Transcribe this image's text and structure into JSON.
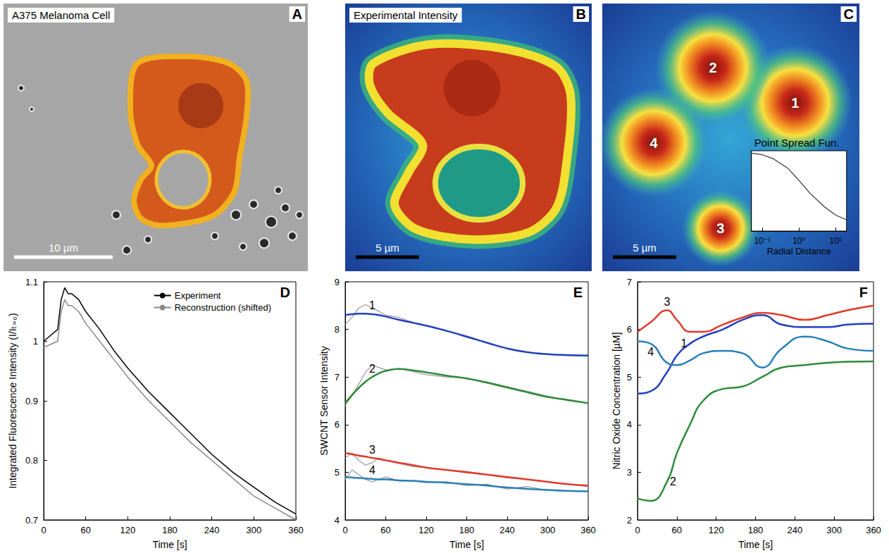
{
  "chart_data": [
    {
      "type": "image",
      "panel": "A",
      "title": "A375 Melanoma Cell",
      "scale_bar": "10 µm"
    },
    {
      "type": "image",
      "panel": "B",
      "title": "Experimental Intensity",
      "scale_bar": "5 µm"
    },
    {
      "type": "image",
      "panel": "C",
      "scale_bar": "5 µm",
      "markers": [
        "1",
        "2",
        "3",
        "4"
      ],
      "inset": {
        "type": "line",
        "title": "Point Spread Fun.",
        "x_label": "Radial Distance",
        "log": "x",
        "x": [
          0.05,
          0.1,
          0.2,
          0.5,
          1,
          2,
          5,
          10,
          20
        ],
        "values": [
          0.97,
          0.95,
          0.9,
          0.78,
          0.63,
          0.47,
          0.3,
          0.2,
          0.14
        ],
        "color": "#333333",
        "xlim": [
          0.05,
          20
        ],
        "xticks": [
          {
            "value": 0.1,
            "label": "10⁻¹"
          },
          {
            "value": 1,
            "label": "10⁰"
          },
          {
            "value": 10,
            "label": "10¹"
          }
        ],
        "ylim": [
          0,
          1
        ],
        "tick_labels": "x"
      }
    },
    {
      "type": "line",
      "panel": "D",
      "x_label": "Time [s]",
      "y_label": "Integrated Fluorescence Intensity (I/Iₜ₌₀)",
      "x": [
        0,
        10,
        20,
        25,
        30,
        35,
        40,
        50,
        60,
        80,
        100,
        120,
        150,
        180,
        210,
        240,
        270,
        300,
        330,
        360
      ],
      "series": [
        {
          "name": "Experiment",
          "color": "#000000",
          "values": [
            1.0,
            1.01,
            1.02,
            1.07,
            1.09,
            1.08,
            1.08,
            1.07,
            1.05,
            1.02,
            0.985,
            0.955,
            0.915,
            0.88,
            0.845,
            0.81,
            0.78,
            0.755,
            0.73,
            0.71
          ]
        },
        {
          "name": "Reconstruction (shifted)",
          "color": "#888888",
          "values": [
            0.99,
            0.995,
            1.0,
            1.05,
            1.07,
            1.06,
            1.06,
            1.05,
            1.03,
            1.0,
            0.97,
            0.94,
            0.9,
            0.865,
            0.83,
            0.8,
            0.77,
            0.74,
            0.72,
            0.7
          ]
        }
      ],
      "xlim": [
        0,
        360
      ],
      "xticks": [
        0,
        60,
        120,
        180,
        240,
        300,
        360
      ],
      "ylim": [
        0.7,
        1.1
      ],
      "yticks": [
        0.7,
        0.8,
        0.9,
        1,
        1.1
      ],
      "legend": "upper right"
    },
    {
      "type": "line",
      "panel": "E",
      "x_label": "Time [s]",
      "y_label": "SWCNT Sensor Intensity",
      "x": [
        0,
        10,
        20,
        30,
        40,
        50,
        60,
        80,
        100,
        120,
        150,
        180,
        210,
        240,
        270,
        300,
        330,
        360
      ],
      "series": [
        {
          "color": "#999999",
          "values": [
            8.1,
            8.25,
            8.45,
            8.52,
            8.45,
            8.38,
            8.3,
            8.25,
            8.15,
            8.08,
            7.98,
            7.83,
            7.72,
            7.6,
            7.52,
            7.48,
            7.45,
            7.44
          ]
        },
        {
          "color": "#999999",
          "values": [
            6.4,
            6.6,
            6.85,
            7.1,
            7.25,
            7.2,
            7.15,
            7.18,
            7.12,
            7.05,
            7.0,
            6.98,
            6.9,
            6.8,
            6.7,
            6.6,
            6.5,
            6.45
          ]
        },
        {
          "color": "#999999",
          "values": [
            5.3,
            5.4,
            5.25,
            5.15,
            5.2,
            5.3,
            5.25,
            5.18,
            5.12,
            5.1,
            5.05,
            5.02,
            4.95,
            4.88,
            4.85,
            4.8,
            4.75,
            4.7
          ]
        },
        {
          "color": "#999999",
          "values": [
            4.85,
            5.05,
            4.95,
            4.85,
            4.8,
            4.85,
            4.9,
            4.82,
            4.82,
            4.78,
            4.8,
            4.72,
            4.75,
            4.65,
            4.7,
            4.62,
            4.6,
            4.6
          ]
        },
        {
          "name": "1",
          "color": "#2240c0",
          "values": [
            8.3,
            8.32,
            8.33,
            8.33,
            8.32,
            8.3,
            8.27,
            8.2,
            8.14,
            8.08,
            7.97,
            7.85,
            7.72,
            7.6,
            7.52,
            7.48,
            7.46,
            7.45
          ]
        },
        {
          "name": "2",
          "color": "#2e8b3a",
          "values": [
            6.45,
            6.62,
            6.77,
            6.9,
            7.0,
            7.08,
            7.13,
            7.17,
            7.14,
            7.1,
            7.03,
            6.97,
            6.88,
            6.78,
            6.68,
            6.58,
            6.52,
            6.45
          ]
        },
        {
          "name": "3",
          "color": "#e03a2a",
          "values": [
            5.4,
            5.38,
            5.35,
            5.33,
            5.3,
            5.28,
            5.25,
            5.2,
            5.15,
            5.1,
            5.05,
            5.0,
            4.95,
            4.9,
            4.85,
            4.8,
            4.75,
            4.72
          ]
        },
        {
          "name": "4",
          "color": "#2a7fb8",
          "values": [
            4.9,
            4.89,
            4.88,
            4.87,
            4.86,
            4.85,
            4.85,
            4.83,
            4.82,
            4.8,
            4.78,
            4.75,
            4.72,
            4.68,
            4.65,
            4.63,
            4.61,
            4.6
          ]
        }
      ],
      "xlim": [
        0,
        360
      ],
      "xticks": [
        0,
        60,
        120,
        180,
        240,
        300,
        360
      ],
      "ylim": [
        4,
        9
      ],
      "yticks": [
        4,
        5,
        6,
        7,
        8,
        9
      ]
    },
    {
      "type": "line",
      "panel": "F",
      "x_label": "Time [s]",
      "y_label": "Nitric Oxide Concentration [µM]",
      "x": [
        0,
        20,
        45,
        60,
        80,
        100,
        130,
        160,
        190,
        220,
        255,
        290,
        320,
        360
      ],
      "series": [
        {
          "name": "1",
          "color": "#2240c0",
          "values": [
            4.65,
            4.7,
            5.1,
            5.45,
            5.7,
            5.85,
            6.0,
            6.2,
            6.3,
            6.1,
            6.05,
            6.05,
            6.1,
            6.12
          ]
        },
        {
          "name": "2",
          "color": "#2e8b3a",
          "values": [
            2.45,
            2.4,
            2.8,
            3.4,
            4.0,
            4.5,
            4.75,
            4.8,
            5.0,
            5.2,
            5.25,
            5.3,
            5.32,
            5.33
          ]
        },
        {
          "name": "3",
          "color": "#e03a2a",
          "values": [
            5.95,
            6.15,
            6.4,
            6.2,
            5.95,
            5.95,
            6.1,
            6.25,
            6.35,
            6.3,
            6.2,
            6.3,
            6.4,
            6.5
          ]
        },
        {
          "name": "4",
          "color": "#2a7fb8",
          "values": [
            5.75,
            5.7,
            5.3,
            5.25,
            5.35,
            5.5,
            5.55,
            5.5,
            5.2,
            5.6,
            5.85,
            5.75,
            5.6,
            5.55
          ]
        }
      ],
      "xlim": [
        0,
        360
      ],
      "xticks": [
        0,
        60,
        120,
        180,
        240,
        300,
        360
      ],
      "ylim": [
        2,
        7
      ],
      "yticks": [
        2,
        3,
        4,
        5,
        6,
        7
      ]
    }
  ]
}
